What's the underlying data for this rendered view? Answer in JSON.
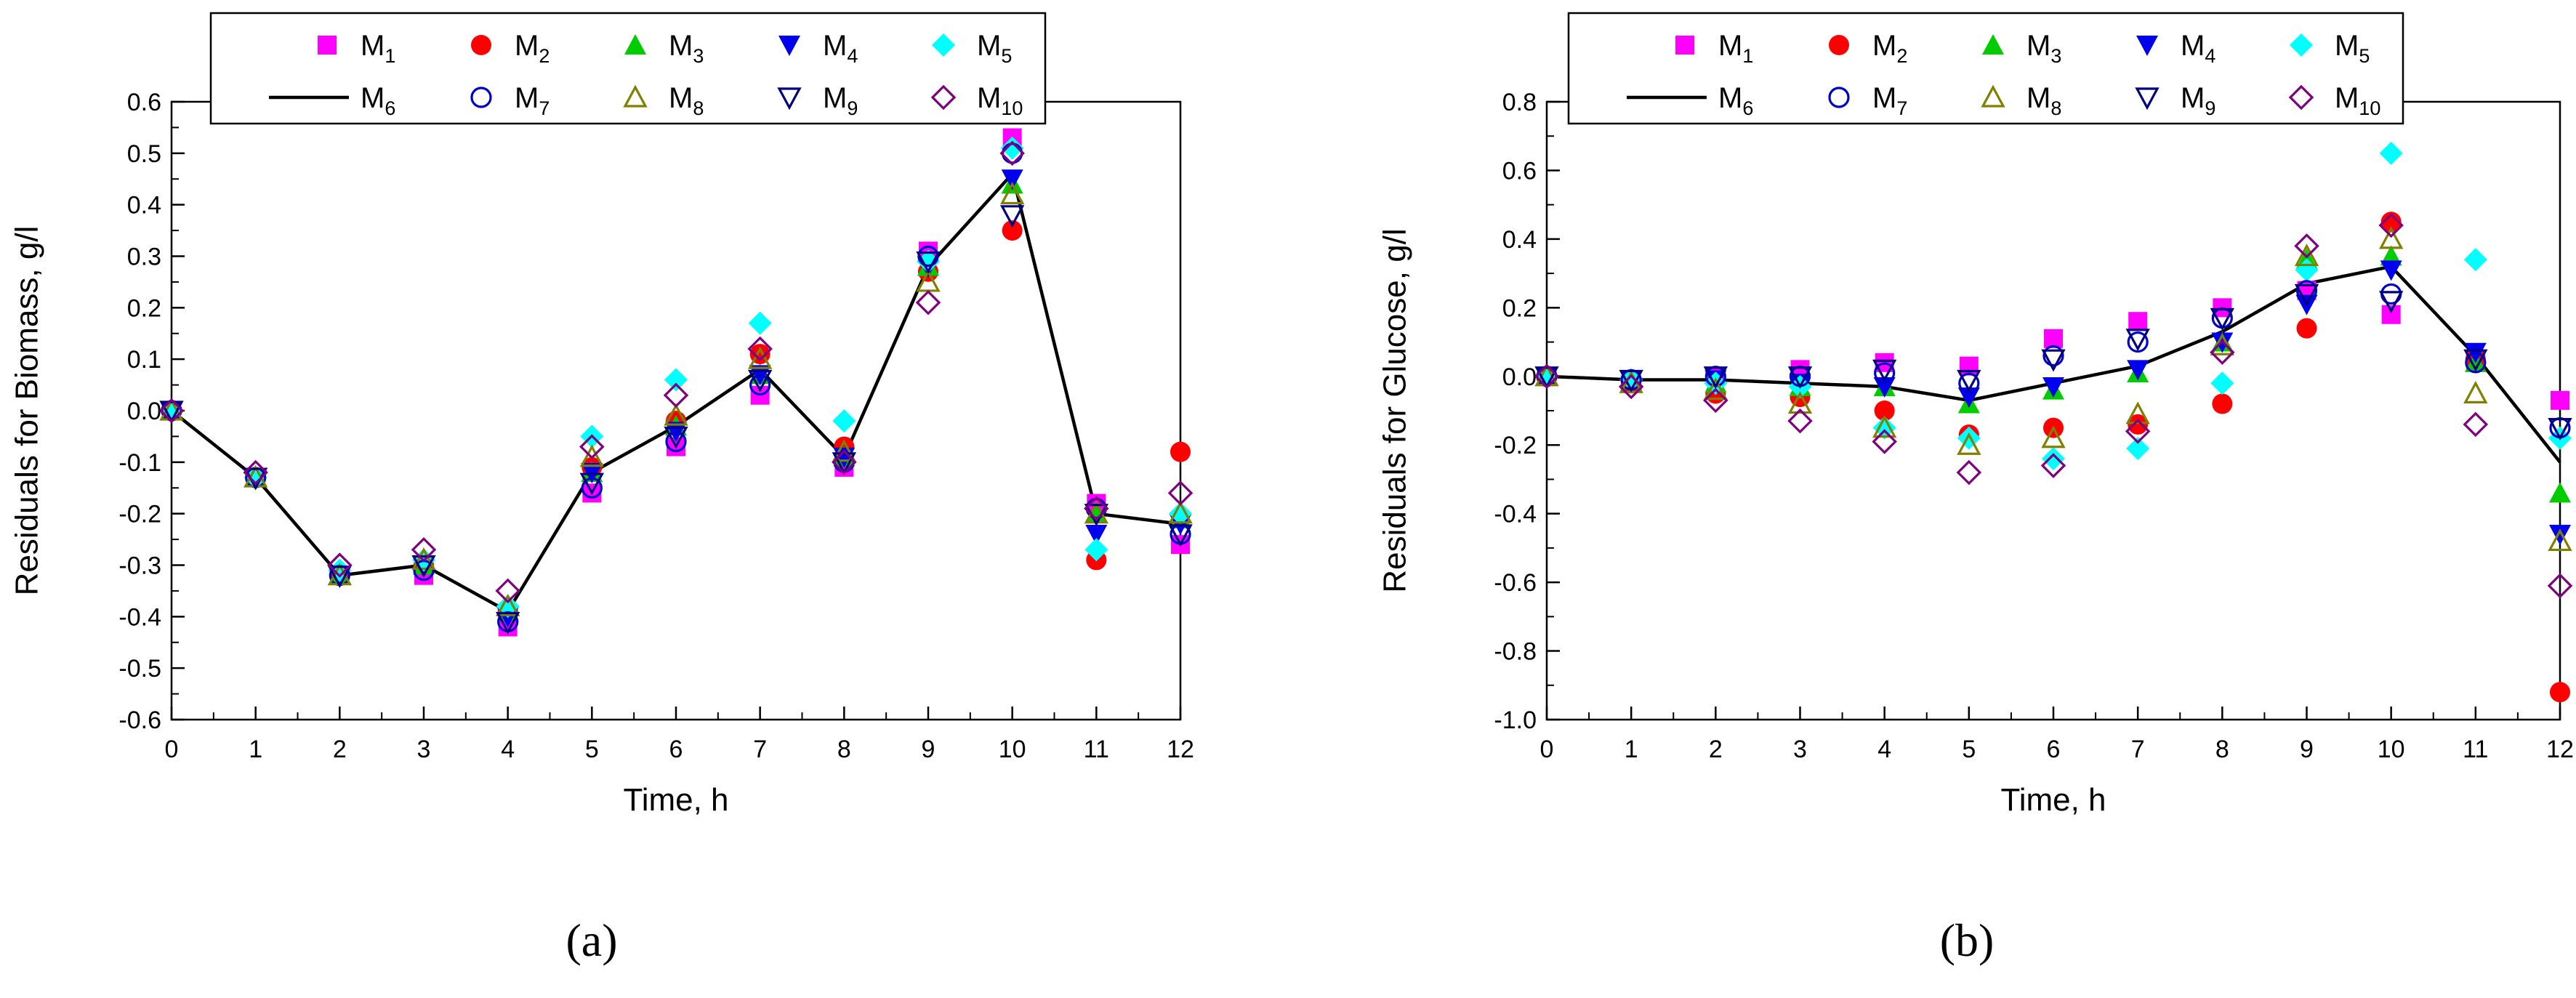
{
  "colors": {
    "M1": "#ff00ff",
    "M2": "#ff0000",
    "M3": "#00cc00",
    "M4": "#0000ee",
    "M5": "#00ffff",
    "M6": "#000000",
    "M7": "#0000cc",
    "M8": "#808000",
    "M9": "#000080",
    "M10": "#800080"
  },
  "legend": [
    {
      "key": "M1",
      "base": "M",
      "sub": "1",
      "marker": "square-filled"
    },
    {
      "key": "M2",
      "base": "M",
      "sub": "2",
      "marker": "circle-filled"
    },
    {
      "key": "M3",
      "base": "M",
      "sub": "3",
      "marker": "triangle-up-filled"
    },
    {
      "key": "M4",
      "base": "M",
      "sub": "4",
      "marker": "triangle-down-filled"
    },
    {
      "key": "M5",
      "base": "M",
      "sub": "5",
      "marker": "diamond-filled"
    },
    {
      "key": "M6",
      "base": "M",
      "sub": "6",
      "marker": "line"
    },
    {
      "key": "M7",
      "base": "M",
      "sub": "7",
      "marker": "circle-open"
    },
    {
      "key": "M8",
      "base": "M",
      "sub": "8",
      "marker": "triangle-up-open"
    },
    {
      "key": "M9",
      "base": "M",
      "sub": "9",
      "marker": "triangle-down-open"
    },
    {
      "key": "M10",
      "base": "M",
      "sub": "10",
      "marker": "diamond-open"
    }
  ],
  "chart_data": [
    {
      "type": "scatter",
      "panel_label": "(a)",
      "xlabel": "Time, h",
      "ylabel": "Residuals for Biomass, g/l",
      "xlim": [
        0,
        12
      ],
      "ylim": [
        -0.6,
        0.6
      ],
      "xticks": [
        "0",
        "1",
        "2",
        "3",
        "4",
        "5",
        "6",
        "7",
        "8",
        "9",
        "10",
        "11",
        "12"
      ],
      "yticks": [
        "-0.6",
        "-0.5",
        "-0.4",
        "-0.3",
        "-0.2",
        "-0.1",
        "0.0",
        "0.1",
        "0.2",
        "0.3",
        "0.4",
        "0.5",
        "0.6"
      ],
      "grid": false,
      "legend_position": "top",
      "x": [
        0,
        1,
        2,
        3,
        4,
        5,
        6,
        7,
        8,
        9,
        10,
        11,
        12
      ],
      "series": [
        {
          "key": "M1",
          "name": "M1",
          "values": [
            0,
            -0.13,
            -0.32,
            -0.32,
            -0.42,
            -0.16,
            -0.07,
            0.03,
            -0.11,
            0.31,
            0.53,
            -0.18,
            -0.26
          ]
        },
        {
          "key": "M2",
          "name": "M2",
          "values": [
            0,
            -0.13,
            -0.32,
            -0.3,
            -0.39,
            -0.11,
            -0.02,
            0.11,
            -0.07,
            0.27,
            0.35,
            -0.29,
            -0.08
          ]
        },
        {
          "key": "M3",
          "name": "M3",
          "values": [
            0,
            -0.13,
            -0.32,
            -0.3,
            -0.39,
            -0.12,
            -0.03,
            0.07,
            -0.09,
            0.28,
            0.44,
            -0.2,
            -0.21
          ]
        },
        {
          "key": "M4",
          "name": "M4",
          "values": [
            0,
            -0.13,
            -0.32,
            -0.3,
            -0.4,
            -0.12,
            -0.04,
            0.07,
            -0.09,
            0.28,
            0.45,
            -0.24,
            -0.22
          ]
        },
        {
          "key": "M5",
          "name": "M5",
          "values": [
            0,
            -0.13,
            -0.31,
            -0.29,
            -0.38,
            -0.05,
            0.06,
            0.17,
            -0.02,
            0.29,
            0.51,
            -0.27,
            -0.2
          ]
        },
        {
          "key": "M6",
          "name": "M6",
          "values": [
            0,
            -0.13,
            -0.32,
            -0.3,
            -0.39,
            -0.12,
            -0.03,
            0.08,
            -0.09,
            0.28,
            0.46,
            -0.2,
            -0.22
          ]
        },
        {
          "key": "M7",
          "name": "M7",
          "values": [
            0,
            -0.13,
            -0.32,
            -0.31,
            -0.41,
            -0.15,
            -0.06,
            0.05,
            -0.1,
            0.3,
            0.5,
            -0.19,
            -0.24
          ]
        },
        {
          "key": "M8",
          "name": "M8",
          "values": [
            0,
            -0.13,
            -0.32,
            -0.29,
            -0.38,
            -0.09,
            -0.01,
            0.1,
            -0.08,
            0.25,
            0.42,
            -0.2,
            -0.2
          ]
        },
        {
          "key": "M9",
          "name": "M9",
          "values": [
            0,
            -0.13,
            -0.32,
            -0.3,
            -0.41,
            -0.14,
            -0.05,
            0.06,
            -0.1,
            0.29,
            0.38,
            -0.2,
            -0.24
          ]
        },
        {
          "key": "M10",
          "name": "M10",
          "values": [
            0,
            -0.12,
            -0.3,
            -0.27,
            -0.35,
            -0.07,
            0.03,
            0.12,
            -0.1,
            0.21,
            0.5,
            -0.19,
            -0.16
          ]
        }
      ]
    },
    {
      "type": "scatter",
      "panel_label": "(b)",
      "xlabel": "Time, h",
      "ylabel": "Residuals for Glucose, g/l",
      "xlim": [
        0,
        12
      ],
      "ylim": [
        -1.0,
        0.8
      ],
      "xticks": [
        "0",
        "1",
        "2",
        "3",
        "4",
        "5",
        "6",
        "7",
        "8",
        "9",
        "10",
        "11",
        "12"
      ],
      "yticks": [
        "-1.0",
        "-0.8",
        "-0.6",
        "-0.4",
        "-0.2",
        "0.0",
        "0.2",
        "0.4",
        "0.6",
        "0.8"
      ],
      "grid": false,
      "legend_position": "top",
      "x": [
        0,
        1,
        2,
        3,
        4,
        5,
        6,
        7,
        8,
        9,
        10,
        11,
        12
      ],
      "series": [
        {
          "key": "M1",
          "name": "M1",
          "values": [
            0,
            -0.01,
            0.0,
            0.02,
            0.04,
            0.03,
            0.11,
            0.16,
            0.2,
            0.25,
            0.18,
            0.05,
            -0.07
          ]
        },
        {
          "key": "M2",
          "name": "M2",
          "values": [
            0,
            -0.02,
            -0.05,
            -0.06,
            -0.1,
            -0.17,
            -0.15,
            -0.14,
            -0.08,
            0.14,
            0.45,
            0.05,
            -0.92
          ]
        },
        {
          "key": "M3",
          "name": "M3",
          "values": [
            0,
            -0.01,
            -0.02,
            -0.03,
            -0.03,
            -0.08,
            -0.04,
            0.01,
            0.1,
            0.34,
            0.35,
            0.04,
            -0.34
          ]
        },
        {
          "key": "M4",
          "name": "M4",
          "values": [
            0,
            -0.01,
            -0.01,
            -0.02,
            -0.03,
            -0.06,
            -0.03,
            0.02,
            0.1,
            0.21,
            0.31,
            0.07,
            -0.46
          ]
        },
        {
          "key": "M5",
          "name": "M5",
          "values": [
            0,
            -0.01,
            -0.02,
            -0.03,
            -0.15,
            -0.18,
            -0.24,
            -0.21,
            -0.02,
            0.31,
            0.65,
            0.34,
            -0.18
          ]
        },
        {
          "key": "M6",
          "name": "M6",
          "values": [
            0,
            -0.01,
            -0.01,
            -0.02,
            -0.03,
            -0.07,
            -0.02,
            0.03,
            0.13,
            0.27,
            0.32,
            0.06,
            -0.25
          ]
        },
        {
          "key": "M7",
          "name": "M7",
          "values": [
            0,
            -0.01,
            0.0,
            0.0,
            0.01,
            -0.02,
            0.06,
            0.1,
            0.17,
            0.25,
            0.24,
            0.04,
            -0.15
          ]
        },
        {
          "key": "M8",
          "name": "M8",
          "values": [
            0,
            -0.02,
            -0.04,
            -0.08,
            -0.15,
            -0.2,
            -0.18,
            -0.11,
            0.09,
            0.35,
            0.4,
            -0.05,
            -0.48
          ]
        },
        {
          "key": "M9",
          "name": "M9",
          "values": [
            0,
            -0.01,
            0.0,
            0.0,
            0.02,
            -0.01,
            0.05,
            0.11,
            0.17,
            0.24,
            0.22,
            0.05,
            -0.15
          ]
        },
        {
          "key": "M10",
          "name": "M10",
          "values": [
            0,
            -0.03,
            -0.07,
            -0.13,
            -0.19,
            -0.28,
            -0.26,
            -0.16,
            0.07,
            0.38,
            0.44,
            -0.14,
            -0.61
          ]
        }
      ]
    }
  ]
}
